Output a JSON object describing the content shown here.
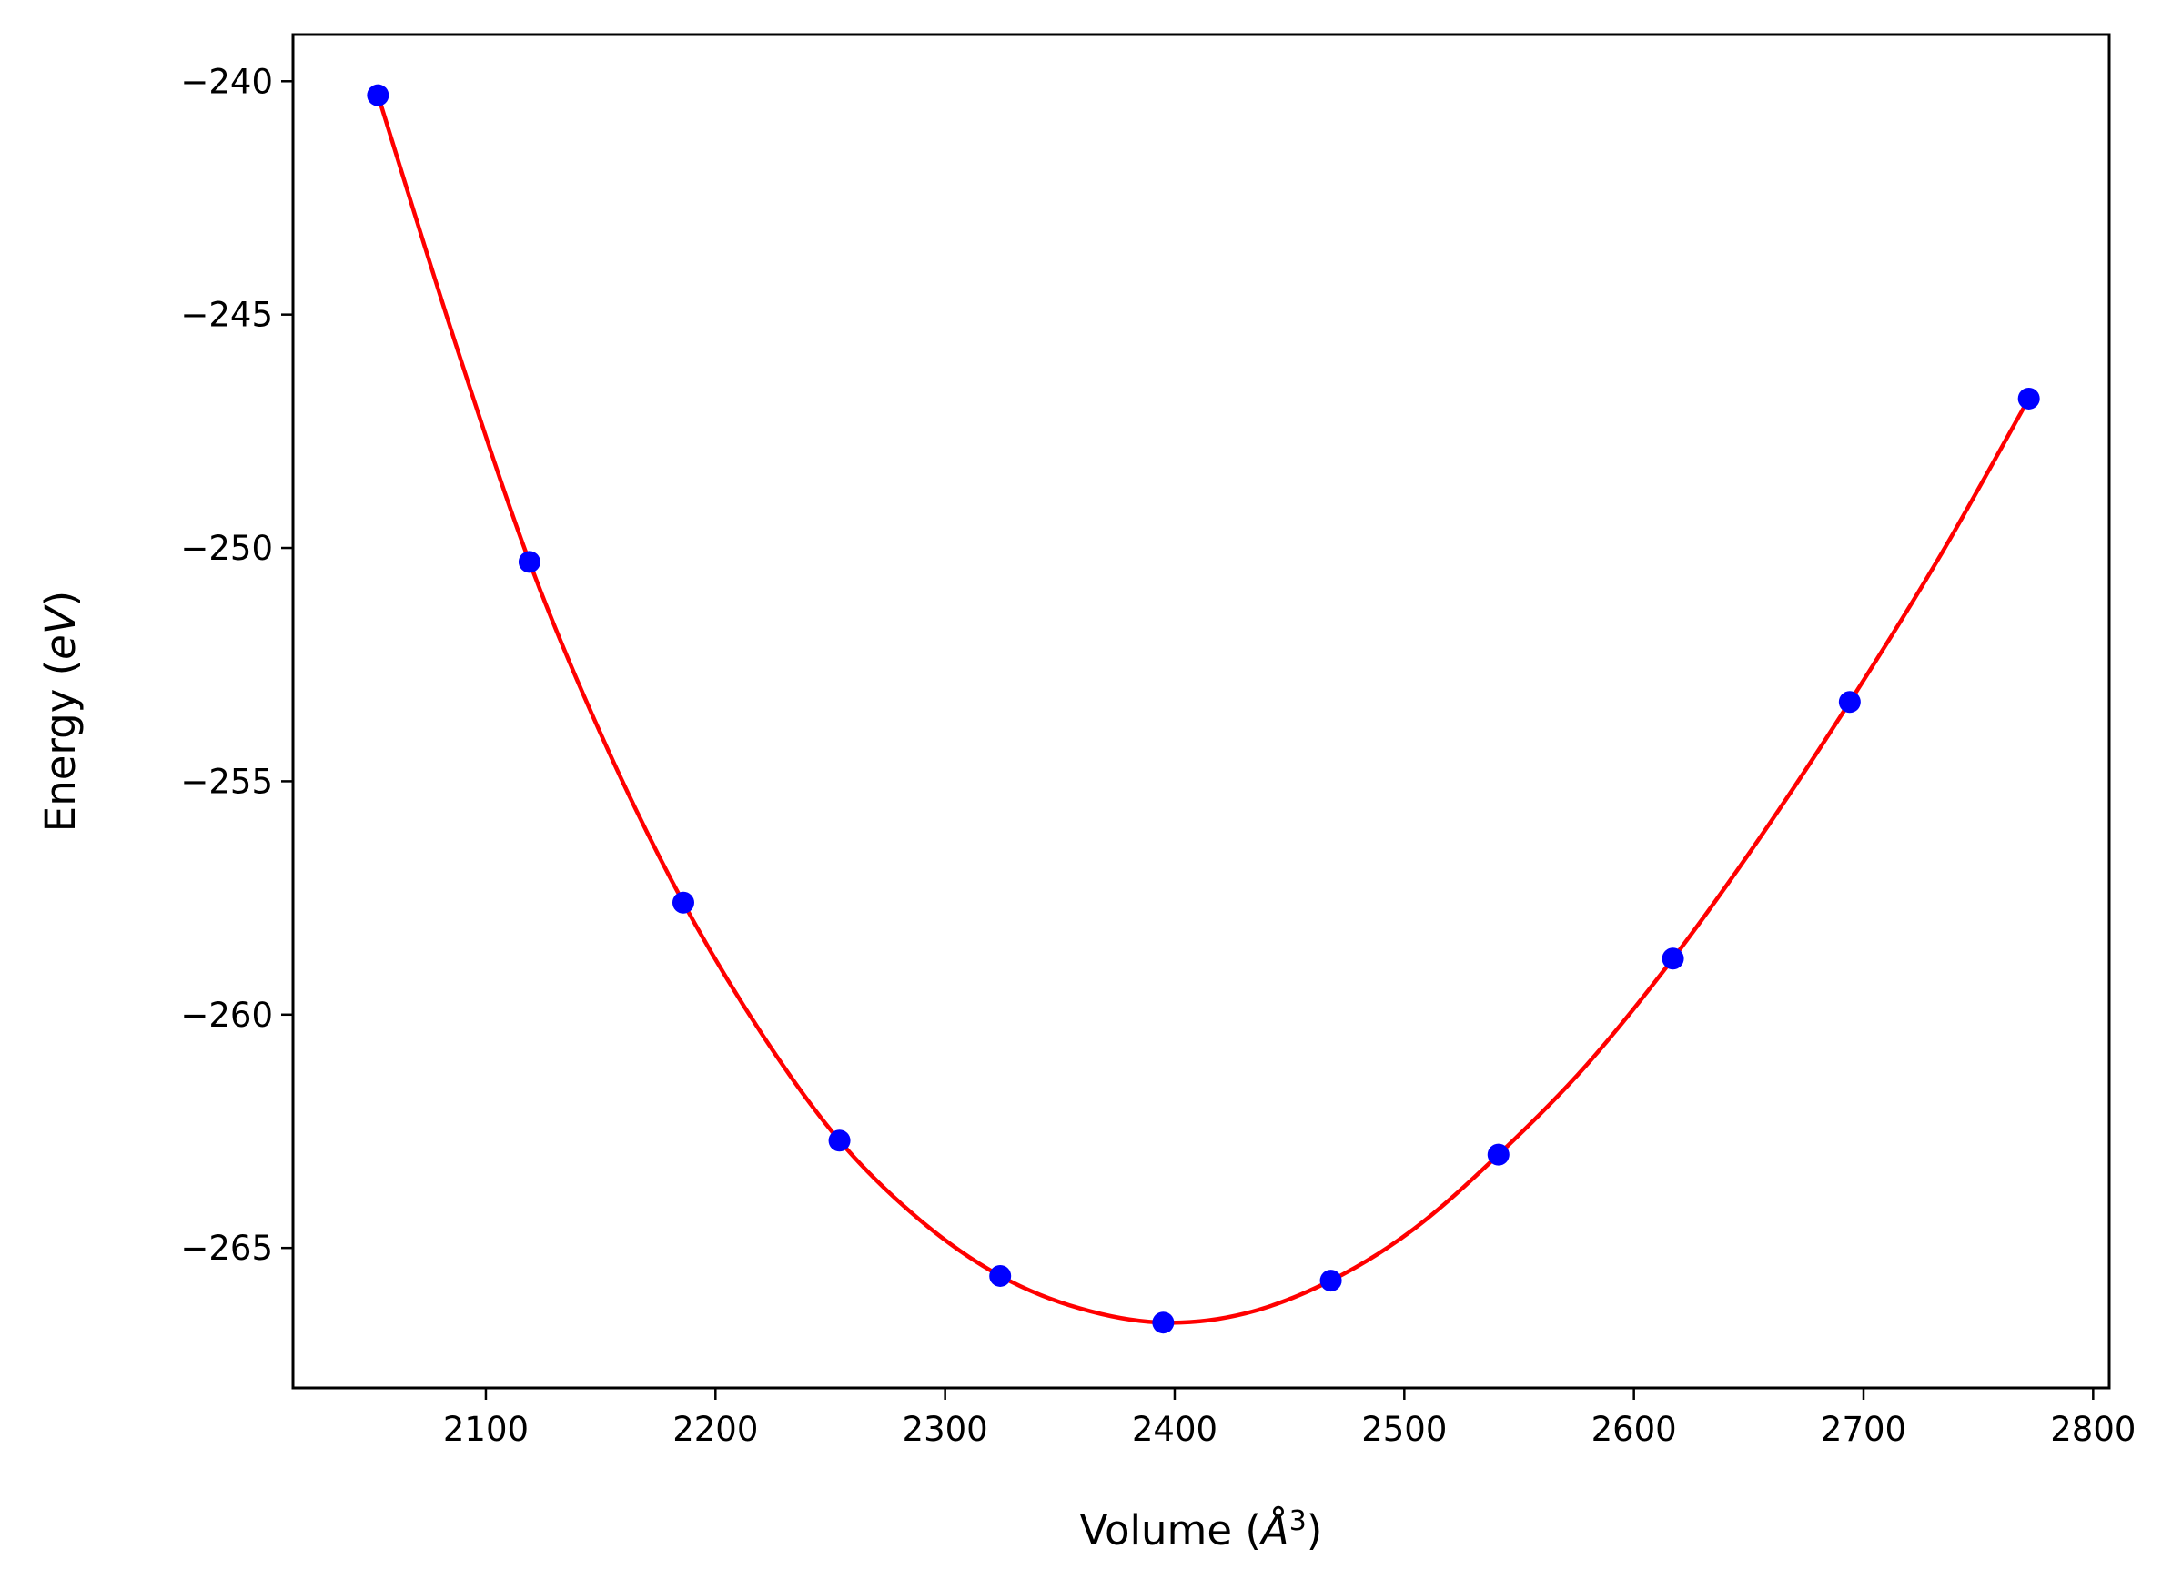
{
  "chart_data": {
    "type": "scatter",
    "title": "",
    "xlabel": "Volume (Å³)",
    "ylabel": "Energy (eV)",
    "xlabel_parts": {
      "prefix": "Volume (",
      "unit": "Å",
      "sup": "3",
      "suffix": ")"
    },
    "ylabel_parts": {
      "prefix": "Energy (",
      "unit": "eV",
      "suffix": ")"
    },
    "xlim": [
      2016,
      2807
    ],
    "ylim": [
      -268.0,
      -239.0
    ],
    "xticks": [
      2100,
      2200,
      2300,
      2400,
      2500,
      2600,
      2700,
      2800
    ],
    "yticks": [
      -240,
      -245,
      -250,
      -255,
      -260,
      -265
    ],
    "grid": false,
    "series": [
      {
        "kind": "points",
        "color": "#0000ff",
        "x": [
          2053,
          2119,
          2186,
          2254,
          2324,
          2395,
          2468,
          2541,
          2617,
          2694,
          2772
        ],
        "y": [
          -240.3,
          -250.3,
          -257.6,
          -262.7,
          -265.6,
          -266.6,
          -265.7,
          -263.0,
          -258.8,
          -253.3,
          -246.8
        ]
      },
      {
        "kind": "fit-curve",
        "color": "#ff0000",
        "x": [
          2053,
          2086,
          2119,
          2152,
          2186,
          2220,
          2254,
          2289,
          2324,
          2359,
          2395,
          2431,
          2468,
          2504,
          2541,
          2579,
          2617,
          2655,
          2694,
          2733,
          2772
        ],
        "y": [
          -240.3,
          -245.5,
          -250.3,
          -254.2,
          -257.6,
          -260.4,
          -262.7,
          -264.4,
          -265.6,
          -266.3,
          -266.6,
          -266.4,
          -265.7,
          -264.6,
          -263.0,
          -261.1,
          -258.8,
          -256.2,
          -253.3,
          -250.2,
          -246.8
        ]
      }
    ]
  }
}
